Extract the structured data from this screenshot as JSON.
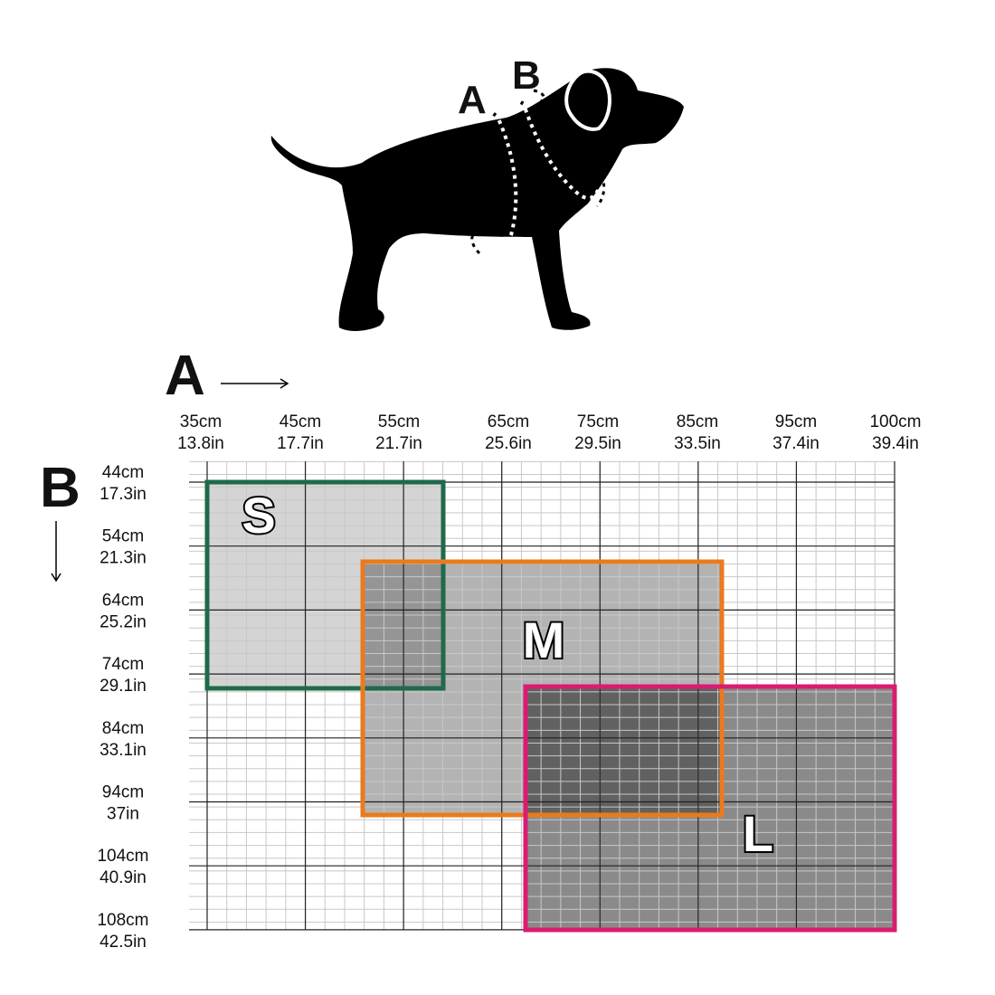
{
  "dog": {
    "labels": [
      "A",
      "B"
    ]
  },
  "axes": {
    "a": {
      "label": "A"
    },
    "b": {
      "label": "B"
    }
  },
  "columns": [
    {
      "cm": "35cm",
      "in": "13.8in"
    },
    {
      "cm": "45cm",
      "in": "17.7in"
    },
    {
      "cm": "55cm",
      "in": "21.7in"
    },
    {
      "cm": "65cm",
      "in": "25.6in"
    },
    {
      "cm": "75cm",
      "in": "29.5in"
    },
    {
      "cm": "85cm",
      "in": "33.5in"
    },
    {
      "cm": "95cm",
      "in": "37.4in"
    },
    {
      "cm": "100cm",
      "in": "39.4in"
    }
  ],
  "rows": [
    {
      "cm": "44cm",
      "in": "17.3in"
    },
    {
      "cm": "54cm",
      "in": "21.3in"
    },
    {
      "cm": "64cm",
      "in": "25.2in"
    },
    {
      "cm": "74cm",
      "in": "29.1in"
    },
    {
      "cm": "84cm",
      "in": "33.1in"
    },
    {
      "cm": "94cm",
      "in": "37in"
    },
    {
      "cm": "104cm",
      "in": "40.9in"
    },
    {
      "cm": "108cm",
      "in": "42.5in"
    }
  ],
  "sizes": [
    {
      "name": "S"
    },
    {
      "name": "M"
    },
    {
      "name": "L"
    }
  ]
}
